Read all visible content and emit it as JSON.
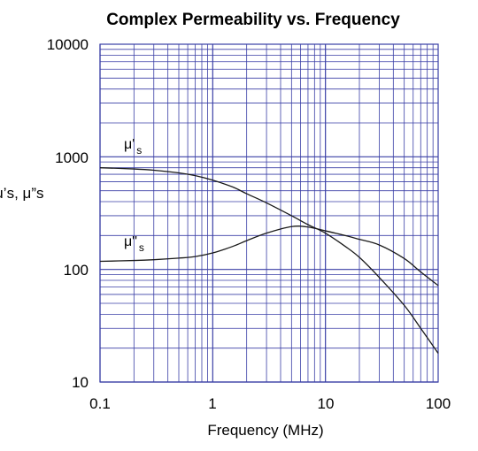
{
  "chart_data": {
    "type": "line",
    "title": "Complex Permeability vs. Frequency",
    "xlabel": "Frequency (MHz)",
    "ylabel": "μ’s, μ”s",
    "x_scale": "log",
    "y_scale": "log",
    "xlim": [
      0.1,
      100
    ],
    "ylim": [
      10,
      10000
    ],
    "x_ticks": [
      "0.1",
      "1",
      "10",
      "100"
    ],
    "y_ticks": [
      "10",
      "100",
      "1000",
      "10000"
    ],
    "grid": true,
    "grid_color": "#3a3fa6",
    "series": [
      {
        "name": "μ's",
        "label_main": "μ'",
        "label_sub": "s",
        "x": [
          0.1,
          0.2,
          0.3,
          0.5,
          0.7,
          1,
          1.5,
          2,
          3,
          5,
          7,
          10,
          15,
          20,
          30,
          50,
          70,
          100
        ],
        "y": [
          800,
          780,
          760,
          720,
          680,
          620,
          540,
          470,
          390,
          300,
          250,
          210,
          160,
          128,
          85,
          48,
          30,
          18
        ]
      },
      {
        "name": "μ\"s",
        "label_main": "μ\"",
        "label_sub": "s",
        "x": [
          0.1,
          0.2,
          0.3,
          0.5,
          0.7,
          1,
          1.5,
          2,
          3,
          5,
          7,
          10,
          15,
          20,
          30,
          50,
          70,
          100
        ],
        "y": [
          118,
          120,
          122,
          126,
          130,
          140,
          160,
          180,
          210,
          240,
          238,
          220,
          200,
          185,
          165,
          125,
          95,
          72
        ]
      }
    ]
  }
}
